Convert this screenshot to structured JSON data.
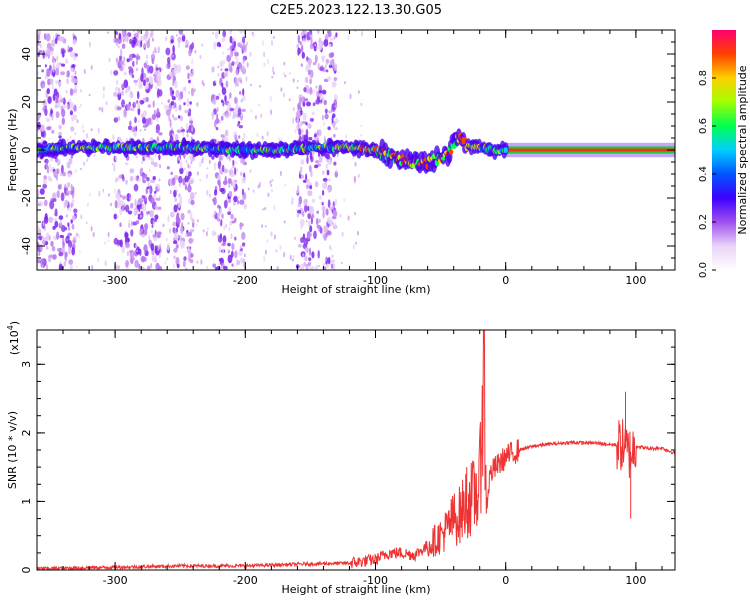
{
  "title": "C2E5.2023.122.13.30.G05",
  "chart_data": [
    {
      "type": "heatmap",
      "panel": "top",
      "xlabel": "Height of straight line (km)",
      "ylabel": "Frequency (Hz)",
      "xlim": [
        -360,
        130
      ],
      "ylim": [
        -50,
        50
      ],
      "x_ticks": [
        -300,
        -200,
        -100,
        0,
        100
      ],
      "x_tick_labels": [
        "-300",
        "-200",
        "-100",
        "0",
        "100"
      ],
      "y_ticks": [
        -40,
        -20,
        0,
        20,
        40
      ],
      "y_tick_labels": [
        "-40",
        "-20",
        "0",
        "20",
        "40"
      ],
      "colorbar": {
        "label": "Normalized spectral amplitude",
        "range": [
          0,
          1
        ],
        "ticks": [
          0.0,
          0.2,
          0.4,
          0.6,
          0.8
        ],
        "tick_labels": [
          "0.0",
          "0.2",
          "0.4",
          "0.6",
          "0.8"
        ],
        "colormap": [
          "#ffffff",
          "#e9d3f7",
          "#a050f0",
          "#3c00ff",
          "#0055ff",
          "#00cfff",
          "#00ff50",
          "#a0ff00",
          "#ffd000",
          "#ff4000",
          "#ff0070"
        ]
      },
      "ridge": {
        "x": [
          -360,
          -330,
          -300,
          -270,
          -240,
          -210,
          -180,
          -150,
          -120,
          -100,
          -90,
          -80,
          -70,
          -60,
          -50,
          -45,
          -40,
          -35,
          -30,
          -20,
          -10,
          0,
          20,
          60,
          100,
          130
        ],
        "y": [
          0,
          1,
          1,
          1,
          1,
          0,
          0,
          1,
          1,
          0,
          -2,
          -4,
          -6,
          -5,
          -3,
          -2,
          3,
          5,
          2,
          1,
          0,
          0,
          0,
          0,
          0,
          0
        ]
      },
      "noise_bands_x": [
        [
          -360,
          -330
        ],
        [
          -300,
          -265
        ],
        [
          -260,
          -240
        ],
        [
          -225,
          -200
        ],
        [
          -160,
          -130
        ]
      ]
    },
    {
      "type": "line",
      "panel": "bottom",
      "xlabel": "Height of straight line (km)",
      "ylabel": "SNR (10 * v/v)",
      "y_multiplier": "(x10",
      "y_multiplier_exp": "4",
      "y_multiplier_close": ")",
      "xlim": [
        -360,
        130
      ],
      "ylim": [
        0,
        35000
      ],
      "x_ticks": [
        -300,
        -200,
        -100,
        0,
        100
      ],
      "x_tick_labels": [
        "-300",
        "-200",
        "-100",
        "0",
        "100"
      ],
      "y_ticks": [
        0,
        10000,
        20000,
        30000
      ],
      "y_tick_labels": [
        "0",
        "1",
        "2",
        "3"
      ],
      "color": "#ee3333",
      "series": [
        {
          "x": [
            -360,
            -300,
            -250,
            -200,
            -150,
            -120,
            -100,
            -90,
            -80,
            -70,
            -60,
            -50,
            -45,
            -40,
            -35,
            -30,
            -25,
            -20,
            -17,
            -15,
            -12,
            -10,
            -5,
            0,
            10,
            20,
            30,
            50,
            70,
            80,
            90,
            95,
            100,
            110,
            120,
            130
          ],
          "y": [
            200,
            400,
            600,
            600,
            900,
            1000,
            1500,
            2500,
            2500,
            2200,
            3500,
            5000,
            6000,
            7500,
            8000,
            10000,
            10500,
            12000,
            33000,
            9000,
            14000,
            14500,
            15500,
            16500,
            17500,
            18000,
            18300,
            18600,
            18500,
            18300,
            18200,
            17000,
            18100,
            17700,
            17800,
            17000
          ]
        }
      ],
      "spikes": [
        {
          "x": -17,
          "y": 35000
        },
        {
          "x": -30,
          "y": 15000
        },
        {
          "x": 92,
          "y": 26000
        },
        {
          "x": 96,
          "y": 7500
        }
      ]
    }
  ]
}
